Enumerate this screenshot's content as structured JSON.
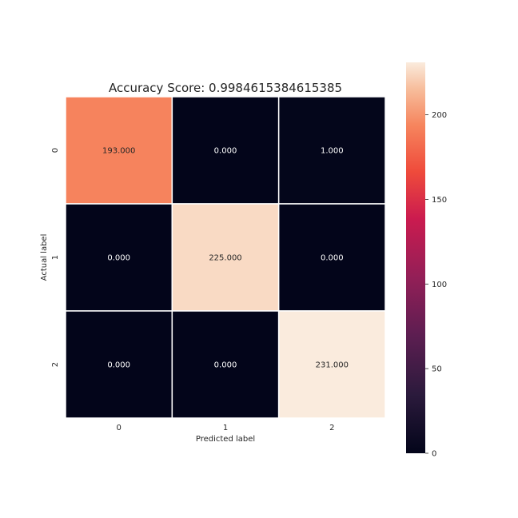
{
  "chart_data": {
    "type": "heatmap",
    "title": "Accuracy Score: 0.9984615384615385",
    "xlabel": "Predicted label",
    "ylabel": "Actual label",
    "x_categories": [
      "0",
      "1",
      "2"
    ],
    "y_categories": [
      "0",
      "1",
      "2"
    ],
    "values": [
      [
        193,
        0,
        1
      ],
      [
        0,
        225,
        0
      ],
      [
        0,
        0,
        231
      ]
    ],
    "cell_labels": [
      [
        "193.000",
        "0.000",
        "1.000"
      ],
      [
        "0.000",
        "225.000",
        "0.000"
      ],
      [
        "0.000",
        "0.000",
        "231.000"
      ]
    ],
    "colorbar": {
      "range": [
        0,
        231
      ],
      "ticks": [
        0,
        50,
        100,
        150,
        200
      ],
      "tick_labels": [
        "0",
        "50",
        "100",
        "150",
        "200"
      ]
    },
    "colormap": "rocket",
    "colors": {
      "cell_gap": "#ffffff",
      "text_dark_cell": "#ffffff",
      "text_light_cell": "#262626"
    }
  }
}
